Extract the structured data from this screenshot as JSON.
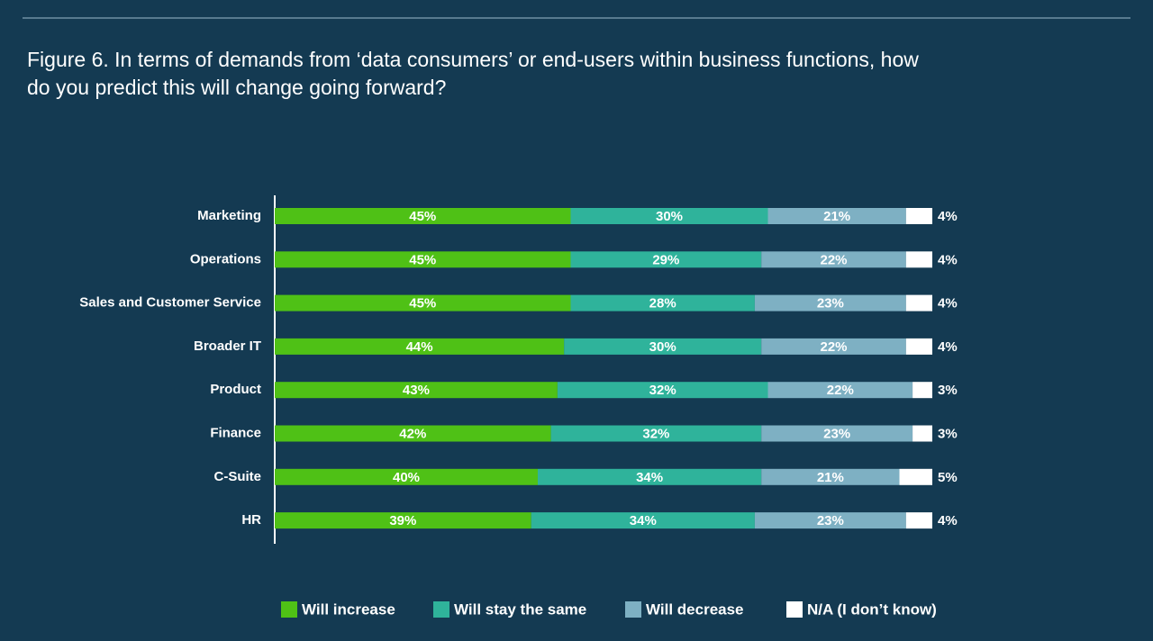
{
  "chart_data": {
    "type": "stacked-bar-horizontal",
    "title_lines": [
      "Figure 6. In terms of demands from ‘data consumers’ or end-users within business functions, how",
      "do you predict this will change going forward?"
    ],
    "categories": [
      "Marketing",
      "Operations",
      "Sales and Customer Service",
      "Broader IT",
      "Product",
      "Finance",
      "C-Suite",
      "HR"
    ],
    "xlim": [
      0,
      100
    ],
    "series": [
      {
        "name": "Will increase",
        "color": "#4fc116",
        "values": [
          45,
          45,
          45,
          44,
          43,
          42,
          40,
          39
        ],
        "value_labels": [
          "45%",
          "45%",
          "45%",
          "44%",
          "43%",
          "42%",
          "40%",
          "39%"
        ]
      },
      {
        "name": "Will stay the same",
        "color": "#2fb39b",
        "values": [
          30,
          29,
          28,
          30,
          32,
          32,
          34,
          34
        ],
        "value_labels": [
          "30%",
          "29%",
          "28%",
          "30%",
          "32%",
          "32%",
          "34%",
          "34%"
        ]
      },
      {
        "name": "Will decrease",
        "color": "#7eb0c3",
        "values": [
          21,
          22,
          23,
          22,
          22,
          23,
          21,
          23
        ],
        "value_labels": [
          "21%",
          "22%",
          "23%",
          "22%",
          "22%",
          "23%",
          "21%",
          "23%"
        ]
      },
      {
        "name": "N/A (I don’t know)",
        "color": "#ffffff",
        "values": [
          4,
          4,
          4,
          4,
          3,
          3,
          5,
          4
        ],
        "value_labels": [
          "4%",
          "4%",
          "4%",
          "4%",
          "3%",
          "3%",
          "5%",
          "4%"
        ]
      }
    ]
  }
}
